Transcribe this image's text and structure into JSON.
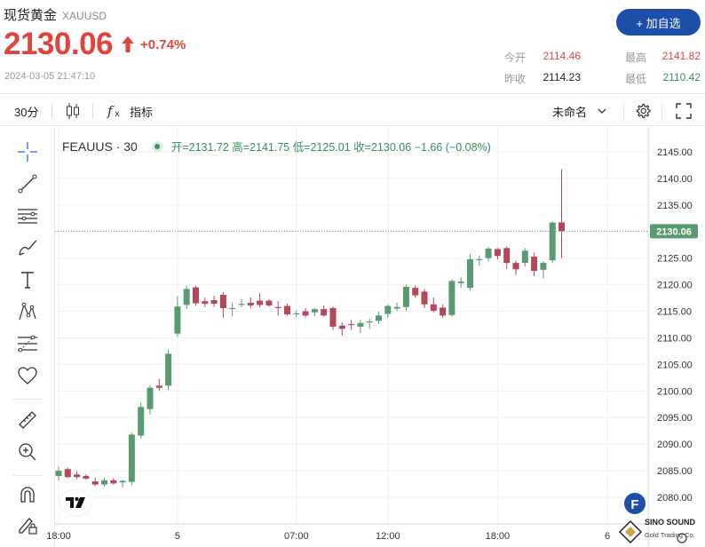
{
  "header": {
    "name": "现货黄金",
    "code": "XAUUSD",
    "price": "2130.06",
    "change_pct": "+0.74%",
    "timestamp": "2024-03-05 21:47:10",
    "add_button": "+ 加自选"
  },
  "stats": {
    "open_label": "今开",
    "open": "2114.46",
    "high_label": "最高",
    "high": "2141.82",
    "prev_close_label": "昨收",
    "prev_close": "2114.23",
    "low_label": "最低",
    "low": "2110.42"
  },
  "toolbar": {
    "interval": "30分",
    "indicators": "指标",
    "layout_name": "未命名"
  },
  "legend": {
    "symbol": "FEAUUS · 30",
    "ohlc": "开=2131.72  高=2141.75  低=2125.01  收=2130.06  −1.66 (−0.08%)"
  },
  "watermark": {
    "line1": "SINO SOUND",
    "line2": "Gold Trading Co."
  },
  "colors": {
    "up": "#5a9a70",
    "down": "#b5475a",
    "accent": "#1e4fa8",
    "price_red": "#e0443c",
    "stat_green": "#3a8f5c"
  },
  "chart_data": {
    "type": "candlestick",
    "title": "FEAUUS · 30",
    "xlabel": "",
    "ylabel": "",
    "x_ticks": [
      {
        "label": "18:00",
        "index": 0
      },
      {
        "label": "5",
        "index": 13
      },
      {
        "label": "07:00",
        "index": 26
      },
      {
        "label": "12:00",
        "index": 36
      },
      {
        "label": "18:00",
        "index": 48
      },
      {
        "label": "6",
        "index": 60
      }
    ],
    "y_ticks": [
      2080,
      2085,
      2090,
      2095,
      2100,
      2105,
      2110,
      2115,
      2120,
      2125,
      2130,
      2135,
      2140,
      2145
    ],
    "ylim": [
      2077.5,
      2147.5
    ],
    "last_price": 2130.06,
    "grid": true,
    "candles": [
      {
        "o": 2084.0,
        "h": 2085.8,
        "l": 2083.2,
        "c": 2085.0
      },
      {
        "o": 2085.3,
        "h": 2085.6,
        "l": 2083.6,
        "c": 2083.8
      },
      {
        "o": 2084.3,
        "h": 2084.9,
        "l": 2083.4,
        "c": 2083.8
      },
      {
        "o": 2084.0,
        "h": 2084.3,
        "l": 2083.3,
        "c": 2083.5
      },
      {
        "o": 2083.0,
        "h": 2083.7,
        "l": 2082.1,
        "c": 2082.4
      },
      {
        "o": 2082.4,
        "h": 2083.7,
        "l": 2082.0,
        "c": 2083.2
      },
      {
        "o": 2083.2,
        "h": 2083.6,
        "l": 2082.4,
        "c": 2082.6
      },
      {
        "o": 2082.8,
        "h": 2083.3,
        "l": 2081.8,
        "c": 2083.1
      },
      {
        "o": 2082.9,
        "h": 2092.2,
        "l": 2082.3,
        "c": 2091.8
      },
      {
        "o": 2091.6,
        "h": 2097.8,
        "l": 2091.0,
        "c": 2097.0
      },
      {
        "o": 2096.6,
        "h": 2101.1,
        "l": 2095.6,
        "c": 2100.6
      },
      {
        "o": 2101.0,
        "h": 2102.3,
        "l": 2100.0,
        "c": 2100.6
      },
      {
        "o": 2101.0,
        "h": 2107.8,
        "l": 2100.2,
        "c": 2107.0
      },
      {
        "o": 2110.8,
        "h": 2117.8,
        "l": 2110.2,
        "c": 2115.9
      },
      {
        "o": 2116.2,
        "h": 2119.8,
        "l": 2115.4,
        "c": 2119.2
      },
      {
        "o": 2119.5,
        "h": 2119.8,
        "l": 2116.0,
        "c": 2116.5
      },
      {
        "o": 2116.9,
        "h": 2117.6,
        "l": 2115.8,
        "c": 2116.4
      },
      {
        "o": 2117.1,
        "h": 2117.9,
        "l": 2115.8,
        "c": 2116.4
      },
      {
        "o": 2118.1,
        "h": 2118.6,
        "l": 2113.8,
        "c": 2115.6
      },
      {
        "o": 2115.5,
        "h": 2116.6,
        "l": 2114.1,
        "c": 2115.6
      },
      {
        "o": 2116.2,
        "h": 2117.3,
        "l": 2115.8,
        "c": 2116.4
      },
      {
        "o": 2116.6,
        "h": 2117.6,
        "l": 2115.6,
        "c": 2116.1
      },
      {
        "o": 2117.0,
        "h": 2118.4,
        "l": 2115.8,
        "c": 2116.2
      },
      {
        "o": 2117.0,
        "h": 2117.2,
        "l": 2115.8,
        "c": 2116.1
      },
      {
        "o": 2115.8,
        "h": 2116.9,
        "l": 2114.2,
        "c": 2115.6
      },
      {
        "o": 2116.0,
        "h": 2116.4,
        "l": 2114.2,
        "c": 2114.4
      },
      {
        "o": 2114.5,
        "h": 2115.2,
        "l": 2113.9,
        "c": 2114.6
      },
      {
        "o": 2115.0,
        "h": 2115.6,
        "l": 2113.8,
        "c": 2114.2
      },
      {
        "o": 2114.8,
        "h": 2115.6,
        "l": 2114.0,
        "c": 2115.4
      },
      {
        "o": 2115.4,
        "h": 2116.1,
        "l": 2114.0,
        "c": 2114.2
      },
      {
        "o": 2115.6,
        "h": 2115.9,
        "l": 2111.5,
        "c": 2112.1
      },
      {
        "o": 2112.3,
        "h": 2112.9,
        "l": 2110.4,
        "c": 2111.7
      },
      {
        "o": 2112.6,
        "h": 2113.4,
        "l": 2111.5,
        "c": 2112.4
      },
      {
        "o": 2112.1,
        "h": 2113.4,
        "l": 2110.9,
        "c": 2112.8
      },
      {
        "o": 2112.9,
        "h": 2113.6,
        "l": 2111.7,
        "c": 2113.1
      },
      {
        "o": 2113.2,
        "h": 2114.9,
        "l": 2112.6,
        "c": 2114.2
      },
      {
        "o": 2114.5,
        "h": 2116.3,
        "l": 2113.8,
        "c": 2116.0
      },
      {
        "o": 2115.5,
        "h": 2116.6,
        "l": 2115.1,
        "c": 2115.8
      },
      {
        "o": 2115.8,
        "h": 2120.0,
        "l": 2115.1,
        "c": 2119.6
      },
      {
        "o": 2119.4,
        "h": 2119.9,
        "l": 2117.6,
        "c": 2118.0
      },
      {
        "o": 2118.7,
        "h": 2119.2,
        "l": 2115.6,
        "c": 2116.3
      },
      {
        "o": 2116.3,
        "h": 2117.6,
        "l": 2114.8,
        "c": 2115.1
      },
      {
        "o": 2115.7,
        "h": 2116.3,
        "l": 2113.8,
        "c": 2114.2
      },
      {
        "o": 2114.3,
        "h": 2121.0,
        "l": 2114.0,
        "c": 2120.7
      },
      {
        "o": 2120.3,
        "h": 2121.4,
        "l": 2119.4,
        "c": 2120.6
      },
      {
        "o": 2119.4,
        "h": 2125.8,
        "l": 2118.9,
        "c": 2124.8
      },
      {
        "o": 2124.6,
        "h": 2125.5,
        "l": 2123.6,
        "c": 2124.8
      },
      {
        "o": 2125.0,
        "h": 2127.1,
        "l": 2124.4,
        "c": 2126.8
      },
      {
        "o": 2126.7,
        "h": 2126.9,
        "l": 2124.8,
        "c": 2125.4
      },
      {
        "o": 2126.9,
        "h": 2127.2,
        "l": 2122.9,
        "c": 2124.1
      },
      {
        "o": 2124.1,
        "h": 2124.5,
        "l": 2121.8,
        "c": 2122.9
      },
      {
        "o": 2124.1,
        "h": 2126.9,
        "l": 2123.4,
        "c": 2126.4
      },
      {
        "o": 2125.3,
        "h": 2126.0,
        "l": 2121.6,
        "c": 2122.6
      },
      {
        "o": 2122.8,
        "h": 2124.4,
        "l": 2121.2,
        "c": 2124.1
      },
      {
        "o": 2124.6,
        "h": 2131.9,
        "l": 2124.1,
        "c": 2131.7
      },
      {
        "o": 2131.72,
        "h": 2141.75,
        "l": 2125.01,
        "c": 2130.06
      }
    ]
  }
}
